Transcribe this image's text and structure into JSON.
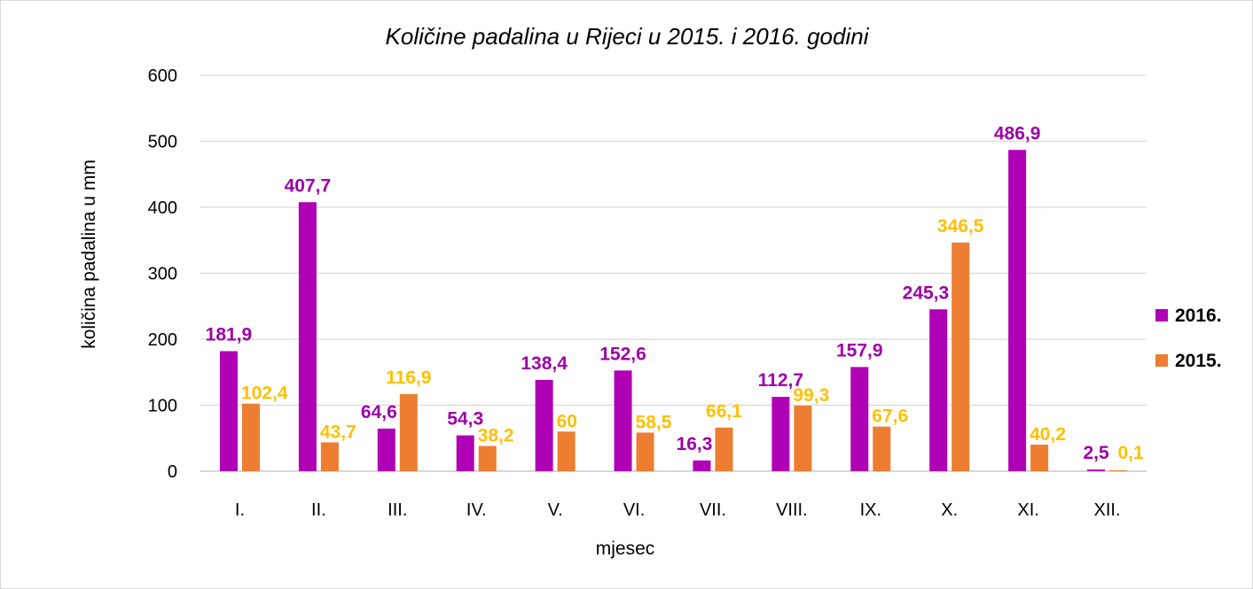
{
  "chart_data": {
    "type": "bar",
    "title": "Količine padalina u Rijeci u 2015. i 2016. godini",
    "xlabel": "mjesec",
    "ylabel": "količina padalina u mm",
    "categories": [
      "I.",
      "II.",
      "III.",
      "IV.",
      "V.",
      "VI.",
      "VII.",
      "VIII.",
      "IX.",
      "X.",
      "XI.",
      "XII."
    ],
    "ylim": [
      0,
      600
    ],
    "yticks": [
      0,
      100,
      200,
      300,
      400,
      500,
      600
    ],
    "grid": true,
    "legend_position": "right",
    "series": [
      {
        "name": "2016.",
        "color": "#b000b5",
        "label_color": "#9e00a8",
        "values": [
          181.9,
          407.7,
          64.6,
          54.3,
          138.4,
          152.6,
          16.3,
          112.7,
          157.9,
          245.3,
          486.9,
          2.5
        ],
        "labels": [
          "181,9",
          "407,7",
          "64,6",
          "54,3",
          "138,4",
          "152,6",
          "16,3",
          "112,7",
          "157,9",
          "245,3",
          "486,9",
          "2,5"
        ]
      },
      {
        "name": "2015.",
        "color": "#ed7d31",
        "label_color": "#ffc000",
        "values": [
          102.4,
          43.7,
          116.9,
          38.2,
          60,
          58.5,
          66.1,
          99.3,
          67.6,
          346.5,
          40.2,
          0.1
        ],
        "labels": [
          "102,4",
          "43,7",
          "116,9",
          "38,2",
          "60",
          "58,5",
          "66,1",
          "99,3",
          "67,6",
          "346,5",
          "40,2",
          "0,1"
        ]
      }
    ]
  }
}
